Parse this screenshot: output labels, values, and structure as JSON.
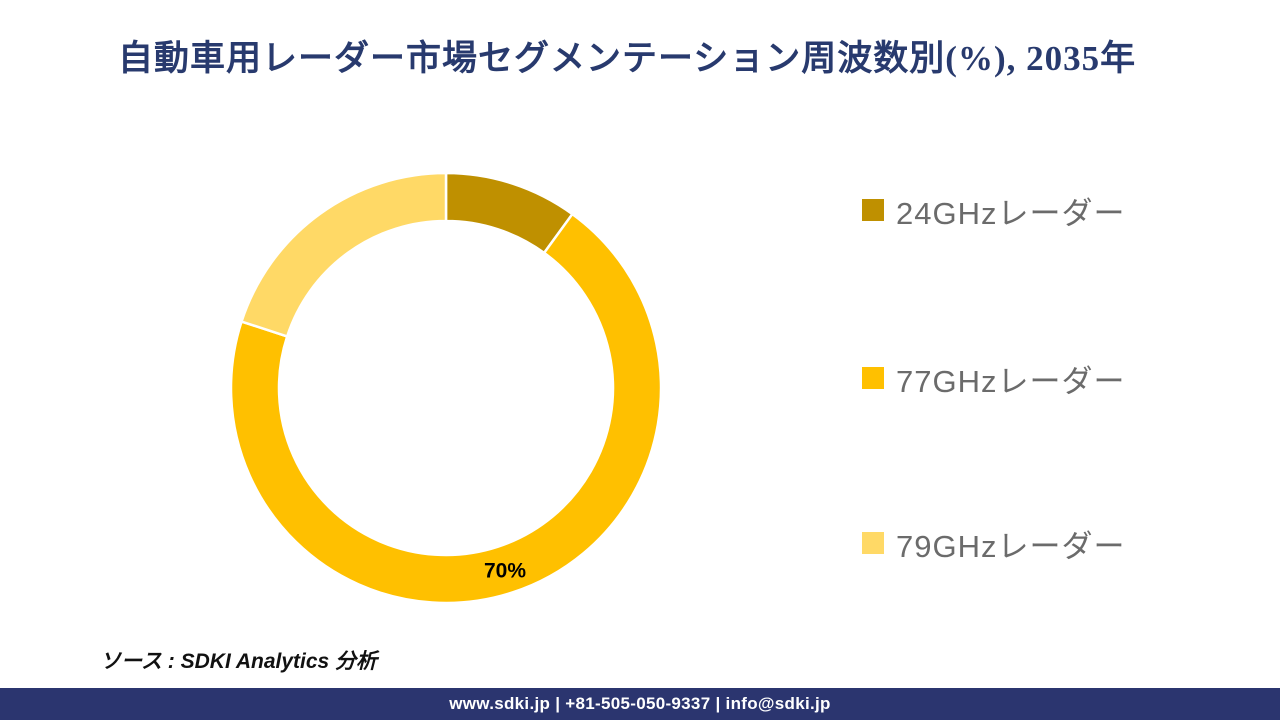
{
  "title": "自動車用レーダー市場セグメンテーション周波数別(%), 2035年",
  "colors": {
    "title": "#283A6E",
    "footer_bg": "#2B356F",
    "footer_text": "#FFFFFF",
    "legend_text": "#6B6B6B",
    "slice_label": "#000000"
  },
  "chart_data": {
    "type": "pie",
    "subtype": "donut",
    "title": "自動車用レーダー市場セグメンテーション周波数別(%), 2035年",
    "categories": [
      "24GHzレーダー",
      "77GHzレーダー",
      "79GHzレーダー"
    ],
    "values": [
      10,
      70,
      20
    ],
    "unit": "%",
    "colors": [
      "#BF9000",
      "#FFC000",
      "#FFD966"
    ],
    "data_labels": [
      "",
      "70%",
      ""
    ],
    "start_angle_deg": 0,
    "direction": "clockwise",
    "legend_position": "right",
    "grid": "off"
  },
  "legend": {
    "items": [
      {
        "label": "24GHzレーダー",
        "color": "#BF9000"
      },
      {
        "label": "77GHzレーダー",
        "color": "#FFC000"
      },
      {
        "label": "79GHzレーダー",
        "color": "#FFD966"
      }
    ]
  },
  "source": "ソース : SDKI Analytics 分析",
  "footer": {
    "text": "www.sdki.jp | +81-505-050-9337 | info@sdki.jp"
  }
}
